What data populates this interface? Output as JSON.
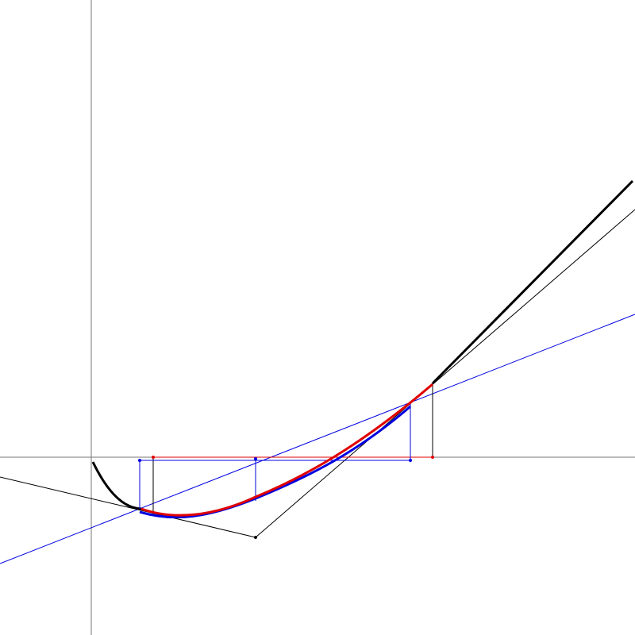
{
  "colors": {
    "background": "#ffffff",
    "axes": "#777777",
    "curve": "#000000",
    "red_construction": "#e00000",
    "blue_construction": "#0000e0",
    "black_construction": "#000000"
  },
  "diagram": {
    "type": "geometric-construction",
    "description_of_elements": [
      "x-axis",
      "y-axis",
      "main-curve",
      "tangent-lines",
      "control-point",
      "red-approximation",
      "blue-approximation",
      "vertical-guides",
      "horizontal-guides"
    ]
  }
}
